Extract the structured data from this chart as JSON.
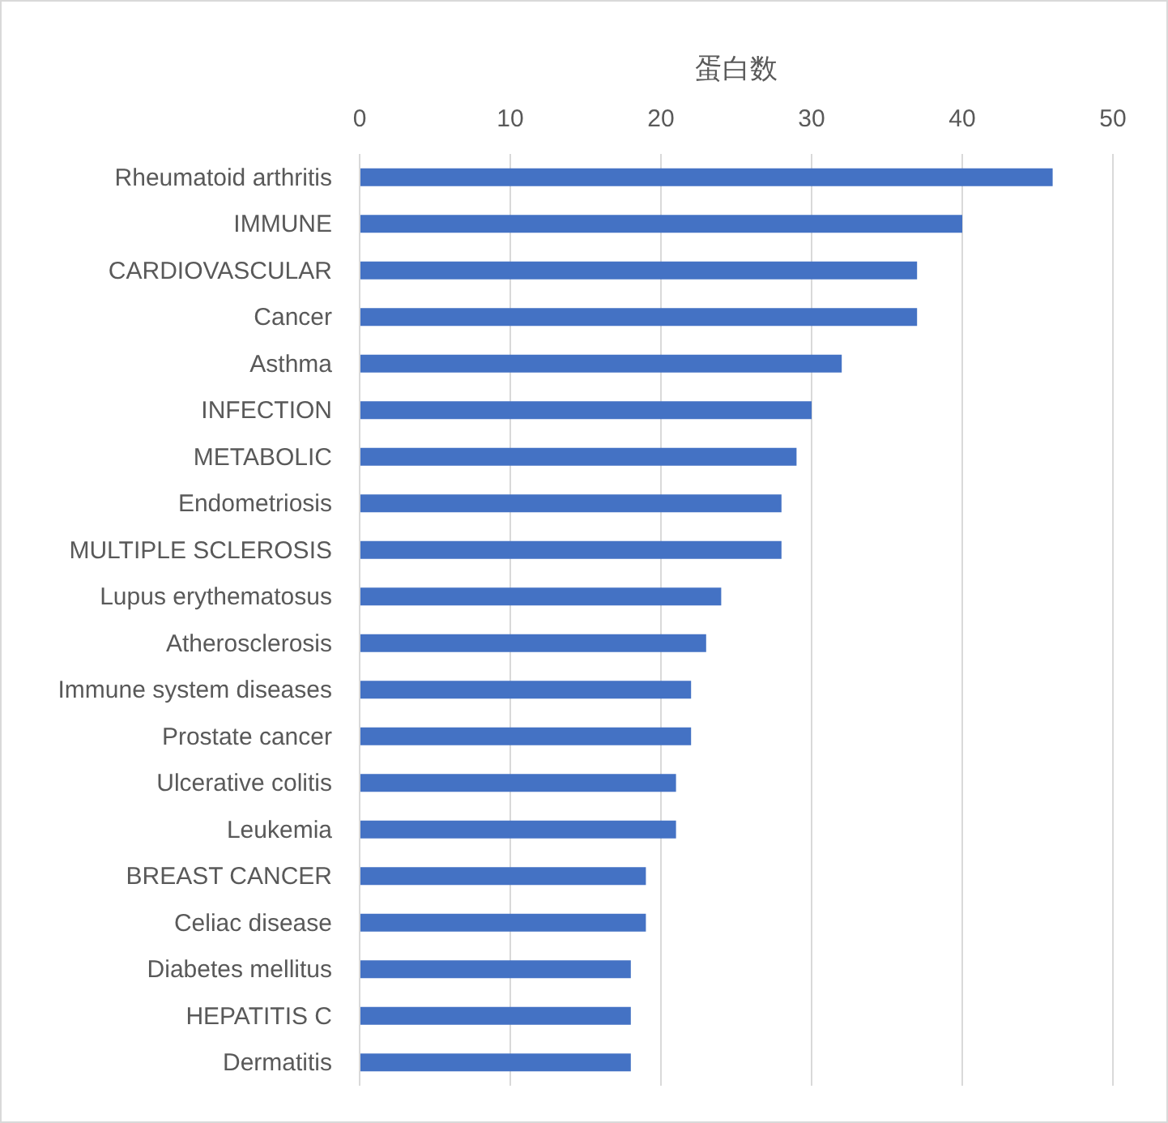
{
  "chart_data": {
    "type": "bar",
    "orientation": "horizontal",
    "xlabel": "蛋白数",
    "color": "#4472c4",
    "grid": "x",
    "xlim": [
      0,
      50
    ],
    "xticks": [
      0,
      10,
      20,
      30,
      40,
      50
    ],
    "categories": [
      "Rheumatoid arthritis",
      "IMMUNE",
      "CARDIOVASCULAR",
      "Cancer",
      "Asthma",
      "INFECTION",
      "METABOLIC",
      "Endometriosis",
      "MULTIPLE SCLEROSIS",
      "Lupus erythematosus",
      "Atherosclerosis",
      "Immune system diseases",
      "Prostate cancer",
      "Ulcerative colitis",
      "Leukemia",
      "BREAST CANCER",
      "Celiac disease",
      "Diabetes mellitus",
      "HEPATITIS C",
      "Dermatitis"
    ],
    "values": [
      46,
      40,
      37,
      37,
      32,
      30,
      29,
      28,
      28,
      24,
      23,
      22,
      22,
      21,
      21,
      19,
      19,
      18,
      18,
      18
    ]
  }
}
